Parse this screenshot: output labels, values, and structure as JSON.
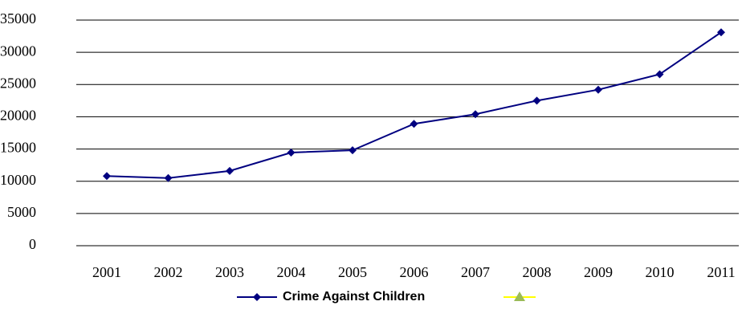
{
  "chart_data": {
    "type": "line",
    "categories": [
      "2001",
      "2002",
      "2003",
      "2004",
      "2005",
      "2006",
      "2007",
      "2008",
      "2009",
      "2010",
      "2011"
    ],
    "series": [
      {
        "name": "Crime Against Children",
        "color": "#000080",
        "values": [
          10800,
          10500,
          11600,
          14450,
          14800,
          18900,
          20400,
          22500,
          24200,
          26600,
          33100
        ]
      }
    ],
    "ylim": [
      0,
      35000
    ],
    "yticks": [
      0,
      5000,
      10000,
      15000,
      20000,
      25000,
      30000,
      35000
    ],
    "grid": true
  }
}
